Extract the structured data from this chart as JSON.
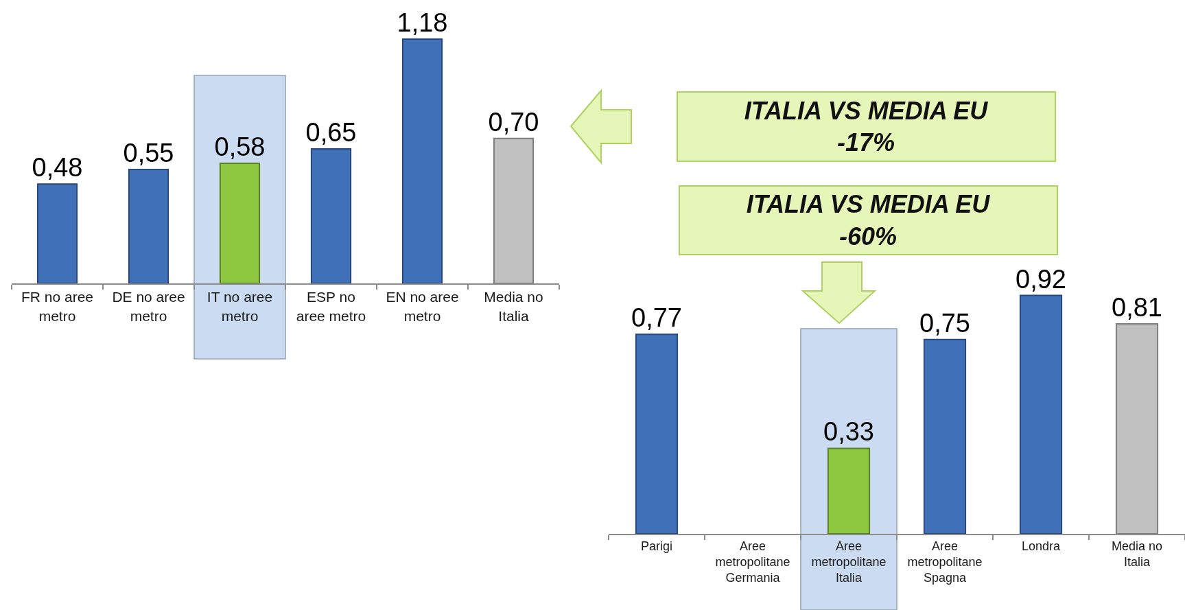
{
  "chart_data": [
    {
      "type": "bar",
      "categories": [
        "FR no aree metro",
        "DE no aree metro",
        "IT no aree metro",
        "ESP no aree metro",
        "EN no aree metro",
        "Media no Italia"
      ],
      "values": [
        0.48,
        0.55,
        0.58,
        0.65,
        1.18,
        0.7
      ],
      "colors": [
        "#3f70b8",
        "#3f70b8",
        "#8dc63f",
        "#3f70b8",
        "#3f70b8",
        "#c0c0c0"
      ],
      "value_labels": [
        "0,48",
        "0,55",
        "0,58",
        "0,65",
        "1,18",
        "0,70"
      ],
      "bands": [
        {
          "axis": "x",
          "from": "IT no aree metro",
          "to": "IT no aree metro",
          "color": "#c6d9f1"
        }
      ],
      "annotations": [
        "ITALIA VS MEDIA EU\n-17%"
      ]
    },
    {
      "type": "bar",
      "categories": [
        "Parigi",
        "Aree metropolitane Germania",
        "Aree metropolitane Italia",
        "Aree metropolitane Spagna",
        "Londra",
        "Media no Italia"
      ],
      "values": [
        0.77,
        null,
        0.33,
        0.75,
        0.92,
        0.81
      ],
      "colors": [
        "#3f70b8",
        "#3f70b8",
        "#8dc63f",
        "#3f70b8",
        "#3f70b8",
        "#c0c0c0"
      ],
      "value_labels": [
        "0,77",
        null,
        "0,33",
        "0,75",
        "0,92",
        "0,81"
      ],
      "bands": [
        {
          "axis": "x",
          "from": "Aree metropolitane Italia",
          "to": "Aree metropolitane Italia",
          "color": "#c6d9f1"
        }
      ],
      "annotations": [
        "ITALIA VS MEDIA EU\n-60%"
      ]
    }
  ]
}
